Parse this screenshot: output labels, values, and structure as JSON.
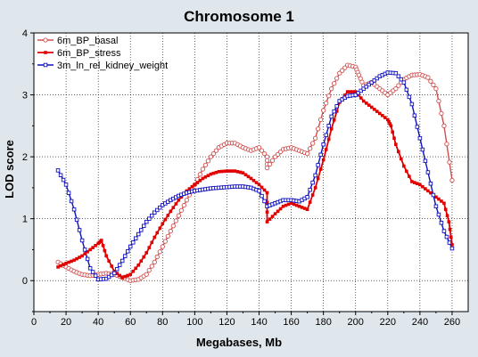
{
  "chart_data": {
    "type": "line",
    "title": "Chromosome 1",
    "xlabel": "Megabases, Mb",
    "ylabel": "LOD score",
    "xlim": [
      0,
      270
    ],
    "ylim": [
      -0.5,
      4
    ],
    "x_ticks": [
      0,
      20,
      40,
      60,
      80,
      100,
      120,
      140,
      160,
      180,
      200,
      220,
      240,
      260
    ],
    "y_ticks": [
      0,
      1,
      2,
      3,
      4
    ],
    "grid": true,
    "grid_style": "dotted",
    "background": "#dfe6ec",
    "plot_background": "#ffffff",
    "legend_position": "top-left",
    "series": [
      {
        "name": "6m_BP_basal",
        "color": "#d05050",
        "marker": "open-circle",
        "points": [
          [
            15,
            0.3
          ],
          [
            20,
            0.22
          ],
          [
            25,
            0.15
          ],
          [
            30,
            0.1
          ],
          [
            35,
            0.08
          ],
          [
            40,
            0.1
          ],
          [
            45,
            0.12
          ],
          [
            50,
            0.1
          ],
          [
            55,
            0.05
          ],
          [
            60,
            0.0
          ],
          [
            65,
            0.02
          ],
          [
            70,
            0.1
          ],
          [
            75,
            0.3
          ],
          [
            80,
            0.55
          ],
          [
            85,
            0.8
          ],
          [
            90,
            1.05
          ],
          [
            95,
            1.3
          ],
          [
            100,
            1.55
          ],
          [
            105,
            1.8
          ],
          [
            110,
            2.0
          ],
          [
            115,
            2.15
          ],
          [
            120,
            2.22
          ],
          [
            125,
            2.22
          ],
          [
            130,
            2.15
          ],
          [
            135,
            2.1
          ],
          [
            140,
            2.15
          ],
          [
            145,
            2.0
          ],
          [
            145,
            1.82
          ],
          [
            150,
            2.0
          ],
          [
            155,
            2.12
          ],
          [
            160,
            2.15
          ],
          [
            165,
            2.1
          ],
          [
            170,
            2.05
          ],
          [
            175,
            2.3
          ],
          [
            180,
            2.75
          ],
          [
            185,
            3.1
          ],
          [
            190,
            3.35
          ],
          [
            195,
            3.48
          ],
          [
            200,
            3.45
          ],
          [
            202,
            3.32
          ],
          [
            205,
            3.15
          ],
          [
            210,
            3.2
          ],
          [
            215,
            3.1
          ],
          [
            220,
            3.0
          ],
          [
            225,
            3.1
          ],
          [
            230,
            3.25
          ],
          [
            235,
            3.32
          ],
          [
            240,
            3.33
          ],
          [
            245,
            3.28
          ],
          [
            250,
            3.1
          ],
          [
            255,
            2.5
          ],
          [
            260,
            1.62
          ]
        ]
      },
      {
        "name": "6m_BP_stress",
        "color": "#e00000",
        "marker": "filled-square",
        "points": [
          [
            15,
            0.22
          ],
          [
            20,
            0.28
          ],
          [
            25,
            0.33
          ],
          [
            30,
            0.4
          ],
          [
            35,
            0.5
          ],
          [
            40,
            0.6
          ],
          [
            42,
            0.65
          ],
          [
            45,
            0.4
          ],
          [
            50,
            0.15
          ],
          [
            55,
            0.05
          ],
          [
            60,
            0.1
          ],
          [
            65,
            0.25
          ],
          [
            70,
            0.45
          ],
          [
            75,
            0.7
          ],
          [
            80,
            0.92
          ],
          [
            85,
            1.12
          ],
          [
            90,
            1.3
          ],
          [
            95,
            1.45
          ],
          [
            100,
            1.55
          ],
          [
            105,
            1.65
          ],
          [
            110,
            1.72
          ],
          [
            115,
            1.76
          ],
          [
            120,
            1.77
          ],
          [
            125,
            1.77
          ],
          [
            130,
            1.74
          ],
          [
            135,
            1.65
          ],
          [
            140,
            1.55
          ],
          [
            145,
            1.42
          ],
          [
            145,
            0.95
          ],
          [
            150,
            1.08
          ],
          [
            155,
            1.2
          ],
          [
            160,
            1.25
          ],
          [
            165,
            1.2
          ],
          [
            170,
            1.15
          ],
          [
            175,
            1.5
          ],
          [
            180,
            1.95
          ],
          [
            185,
            2.45
          ],
          [
            190,
            2.88
          ],
          [
            195,
            3.05
          ],
          [
            200,
            3.05
          ],
          [
            205,
            2.9
          ],
          [
            210,
            2.8
          ],
          [
            215,
            2.7
          ],
          [
            220,
            2.6
          ],
          [
            222,
            2.5
          ],
          [
            225,
            2.2
          ],
          [
            230,
            1.85
          ],
          [
            235,
            1.6
          ],
          [
            240,
            1.55
          ],
          [
            245,
            1.45
          ],
          [
            250,
            1.35
          ],
          [
            255,
            1.25
          ],
          [
            258,
            0.95
          ],
          [
            260,
            0.58
          ]
        ]
      },
      {
        "name": "3m_ln_rel_kidney_weight",
        "color": "#1010c0",
        "marker": "open-square",
        "points": [
          [
            15,
            1.78
          ],
          [
            20,
            1.55
          ],
          [
            25,
            1.15
          ],
          [
            30,
            0.65
          ],
          [
            35,
            0.2
          ],
          [
            40,
            0.02
          ],
          [
            45,
            0.03
          ],
          [
            50,
            0.12
          ],
          [
            55,
            0.32
          ],
          [
            60,
            0.55
          ],
          [
            65,
            0.75
          ],
          [
            70,
            0.95
          ],
          [
            75,
            1.1
          ],
          [
            80,
            1.22
          ],
          [
            85,
            1.3
          ],
          [
            90,
            1.37
          ],
          [
            95,
            1.42
          ],
          [
            100,
            1.45
          ],
          [
            105,
            1.47
          ],
          [
            110,
            1.49
          ],
          [
            115,
            1.5
          ],
          [
            120,
            1.51
          ],
          [
            125,
            1.52
          ],
          [
            130,
            1.52
          ],
          [
            135,
            1.5
          ],
          [
            140,
            1.45
          ],
          [
            145,
            1.2
          ],
          [
            150,
            1.25
          ],
          [
            155,
            1.3
          ],
          [
            160,
            1.3
          ],
          [
            165,
            1.28
          ],
          [
            170,
            1.35
          ],
          [
            175,
            1.7
          ],
          [
            180,
            2.2
          ],
          [
            185,
            2.65
          ],
          [
            190,
            2.9
          ],
          [
            195,
            2.98
          ],
          [
            200,
            3.0
          ],
          [
            205,
            3.1
          ],
          [
            210,
            3.2
          ],
          [
            215,
            3.3
          ],
          [
            220,
            3.36
          ],
          [
            225,
            3.35
          ],
          [
            230,
            3.2
          ],
          [
            235,
            2.85
          ],
          [
            240,
            2.3
          ],
          [
            245,
            1.75
          ],
          [
            250,
            1.2
          ],
          [
            255,
            0.8
          ],
          [
            260,
            0.52
          ]
        ]
      }
    ]
  }
}
